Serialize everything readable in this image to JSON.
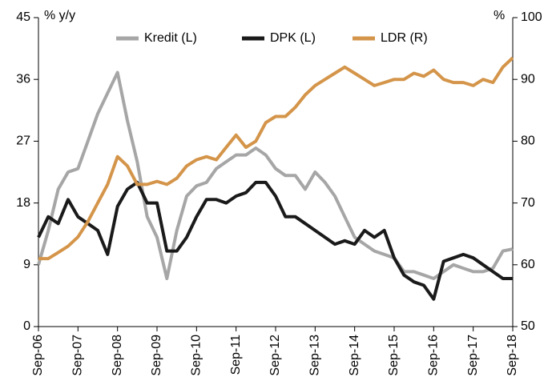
{
  "chart_data": {
    "type": "line",
    "y_axis_label": "% y/y",
    "y2_axis_label": "%",
    "categories": [
      "Sep-06",
      null,
      null,
      null,
      "Sep-07",
      null,
      null,
      null,
      "Sep-08",
      null,
      null,
      null,
      "Sep-09",
      null,
      null,
      null,
      "Sep-10",
      null,
      null,
      null,
      "Sep-11",
      null,
      null,
      null,
      "Sep-12",
      null,
      null,
      null,
      "Sep-13",
      null,
      null,
      null,
      "Sep-14",
      null,
      null,
      null,
      "Sep-15",
      null,
      null,
      null,
      "Sep-16",
      null,
      null,
      null,
      "Sep-17",
      null,
      null,
      null,
      "Sep-18"
    ],
    "series": [
      {
        "name": "Kredit (L)",
        "color": "#a6a6a6",
        "values": [
          9,
          14,
          20,
          22.5,
          23,
          27,
          31,
          34,
          37,
          30,
          24,
          16,
          13,
          7,
          14,
          19,
          20.5,
          21,
          23,
          24,
          25,
          25,
          26,
          25,
          23,
          22,
          22,
          20,
          22.5,
          21,
          19,
          16,
          13,
          12,
          11,
          10.5,
          10,
          8,
          8,
          7.5,
          7,
          8,
          9,
          8.5,
          8,
          8,
          8.5,
          11,
          11.3
        ]
      },
      {
        "name": "DPK (L)",
        "color": "#1a1a1a",
        "values": [
          13,
          16,
          15,
          18.5,
          16,
          15,
          14,
          10.5,
          17.5,
          20,
          21,
          18,
          18,
          11,
          11,
          13,
          16,
          18.5,
          18.5,
          18,
          19,
          19.5,
          21,
          21,
          19,
          16,
          16,
          15,
          14,
          13,
          12,
          12.5,
          12,
          14,
          13,
          14,
          10,
          7.5,
          6.5,
          6,
          4,
          9.5,
          10,
          10.5,
          10,
          9,
          8,
          7,
          7
        ]
      },
      {
        "name": "LDR (R)",
        "color": "#d4954a",
        "axis": "y2",
        "values": [
          61,
          61,
          62,
          63,
          64.5,
          67,
          70,
          73,
          77.5,
          76,
          73,
          73,
          73.5,
          73,
          74,
          76,
          77,
          77.5,
          77,
          79,
          81,
          79,
          80,
          83,
          84,
          84,
          85.5,
          87.5,
          89,
          90,
          91,
          92,
          91,
          90,
          89,
          89.5,
          90,
          90,
          91,
          90.5,
          91.5,
          90,
          89.5,
          89.5,
          89,
          90,
          89.5,
          92,
          93.5
        ]
      }
    ],
    "ylim": [
      0,
      45
    ],
    "yticks": [
      0,
      9,
      18,
      27,
      36,
      45
    ],
    "y2lim": [
      50,
      100
    ],
    "y2ticks": [
      50,
      60,
      70,
      80,
      90,
      100
    ],
    "grid": false,
    "legend": "top"
  }
}
